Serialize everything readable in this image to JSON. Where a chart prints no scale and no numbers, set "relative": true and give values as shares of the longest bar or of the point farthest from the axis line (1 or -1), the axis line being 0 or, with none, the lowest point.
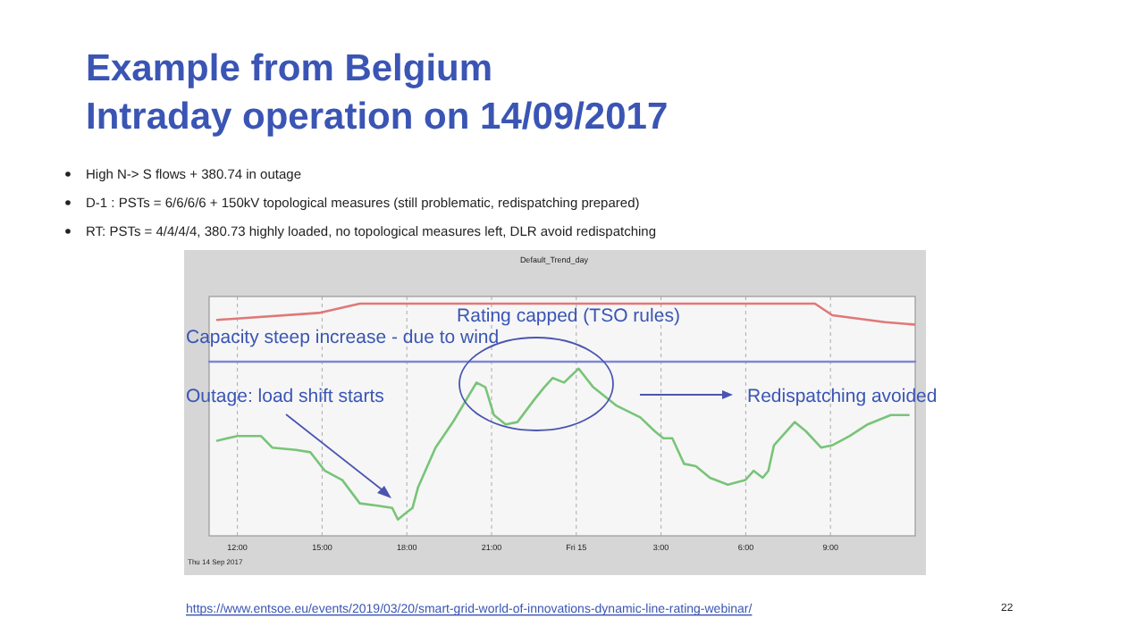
{
  "chart_data": {
    "type": "line",
    "title": "Example from Belgium",
    "subtitle": "Intraday operation on 14/09/2017",
    "relative": true,
    "grid": "x",
    "marker": "none",
    "line_style": "solid",
    "xlim": [
      "2017-09-14T11:00",
      "2017-09-15T12:00"
    ],
    "xticks": [
      {
        "value": "2017-09-14T12:00",
        "label": "12:00"
      },
      {
        "value": "2017-09-14T15:00",
        "label": "15:00"
      },
      {
        "value": "2017-09-14T18:00",
        "label": "18:00"
      },
      {
        "value": "2017-09-14T21:00",
        "label": "21:00"
      },
      {
        "value": "2017-09-15T00:00",
        "label": "Fri 15"
      },
      {
        "value": "2017-09-15T03:00",
        "label": "3:00"
      },
      {
        "value": "2017-09-15T06:00",
        "label": "6:00"
      },
      {
        "value": "2017-09-15T09:00",
        "label": "9:00"
      }
    ],
    "annotations": [
      "High N-> S flows + 380.74 in outage",
      "D-1 : PSTs = 6/6/6/6 + 150kV topological measures (still problematic, redispatching prepared)",
      "RT: PSTs = 4/4/4/4, 380.73 highly loaded, no topological measures left, DLR avoid redispatching",
      "Default_Trend_day",
      "Rating capped (TSO rules)",
      "Capacity steep increase - due to wind",
      "Outage: load shift starts",
      "Redispatching avoided",
      "Thu 14 Sep 2017",
      "https://www.entsoe.eu/events/2019/03/20/smart-grid-world-of-innovations-dynamic-line-rating-webinar/",
      "22"
    ],
    "series": [
      {
        "color": "#e07878",
        "x": [
          "2017-09-14T11:17",
          "2017-09-14T14:53",
          "2017-09-14T16:20",
          "2017-09-15T08:27",
          "2017-09-15T09:04",
          "2017-09-15T10:56",
          "2017-09-15T11:58"
        ],
        "values": [
          0.93,
          0.96,
          1.0,
          1.0,
          0.95,
          0.92,
          0.91
        ]
      },
      {
        "color": "#7f86d6",
        "x": [
          "2017-09-14T11:00",
          "2017-09-15T12:00"
        ],
        "values": [
          0.75,
          0.75
        ]
      },
      {
        "color": "#78c478",
        "x": [
          "2017-09-14T11:17",
          "2017-09-14T12:00",
          "2017-09-14T12:50",
          "2017-09-14T13:14",
          "2017-09-14T14:04",
          "2017-09-14T14:35",
          "2017-09-14T15:06",
          "2017-09-14T15:43",
          "2017-09-14T16:20",
          "2017-09-14T16:58",
          "2017-09-14T17:29",
          "2017-09-14T17:41",
          "2017-09-14T17:59",
          "2017-09-14T18:12",
          "2017-09-14T18:24",
          "2017-09-14T19:01",
          "2017-09-14T19:38",
          "2017-09-14T20:28",
          "2017-09-14T20:47",
          "2017-09-14T21:05",
          "2017-09-14T21:30",
          "2017-09-14T21:55",
          "2017-09-14T22:32",
          "2017-09-14T22:52",
          "2017-09-14T23:10",
          "2017-09-14T23:34",
          "2017-09-15T00:05",
          "2017-09-15T00:36",
          "2017-09-15T01:26",
          "2017-09-15T02:16",
          "2017-09-15T02:47",
          "2017-09-15T03:05",
          "2017-09-15T03:24",
          "2017-09-15T03:49",
          "2017-09-15T04:14",
          "2017-09-15T04:44",
          "2017-09-15T05:22",
          "2017-09-15T05:59",
          "2017-09-15T06:17",
          "2017-09-15T06:36",
          "2017-09-15T06:48",
          "2017-09-15T07:00",
          "2017-09-15T07:44",
          "2017-09-15T08:08",
          "2017-09-15T08:40",
          "2017-09-15T09:04",
          "2017-09-15T09:41",
          "2017-09-15T10:19",
          "2017-09-15T11:08",
          "2017-09-15T11:46"
        ],
        "values": [
          0.41,
          0.43,
          0.43,
          0.38,
          0.37,
          0.36,
          0.28,
          0.24,
          0.14,
          0.13,
          0.12,
          0.07,
          0.1,
          0.12,
          0.21,
          0.38,
          0.49,
          0.66,
          0.64,
          0.52,
          0.48,
          0.49,
          0.59,
          0.64,
          0.68,
          0.66,
          0.72,
          0.64,
          0.56,
          0.51,
          0.45,
          0.42,
          0.42,
          0.31,
          0.3,
          0.25,
          0.22,
          0.24,
          0.28,
          0.25,
          0.28,
          0.39,
          0.49,
          0.45,
          0.38,
          0.39,
          0.43,
          0.48,
          0.52,
          0.52
        ]
      }
    ]
  }
}
